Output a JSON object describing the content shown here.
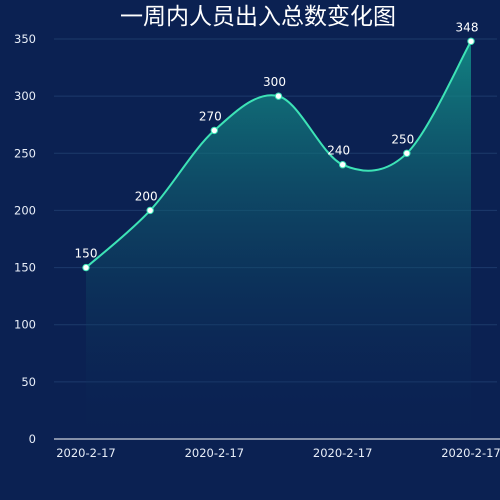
{
  "chart_data": {
    "type": "area",
    "title": "一周内人员出入总数变化图",
    "xlabel": "",
    "ylabel": "",
    "ylim": [
      0,
      350
    ],
    "y_ticks": [
      0,
      50,
      100,
      150,
      200,
      250,
      300,
      350
    ],
    "x_tick_labels": [
      "2020-2-17",
      "2020-2-17",
      "2020-2-17",
      "2020-2-17"
    ],
    "grid": true,
    "smooth": true,
    "series": [
      {
        "values": [
          150,
          200,
          270,
          300,
          240,
          250,
          348
        ]
      }
    ],
    "colors": {
      "background": "#0b2152",
      "line": "#3de3b6",
      "area_top": "#13948a",
      "area_bottom": "#0b2152",
      "grid": "#1c3a6b",
      "axis": "#ffffff",
      "point": "#ffffff",
      "text": "#ffffff"
    }
  }
}
